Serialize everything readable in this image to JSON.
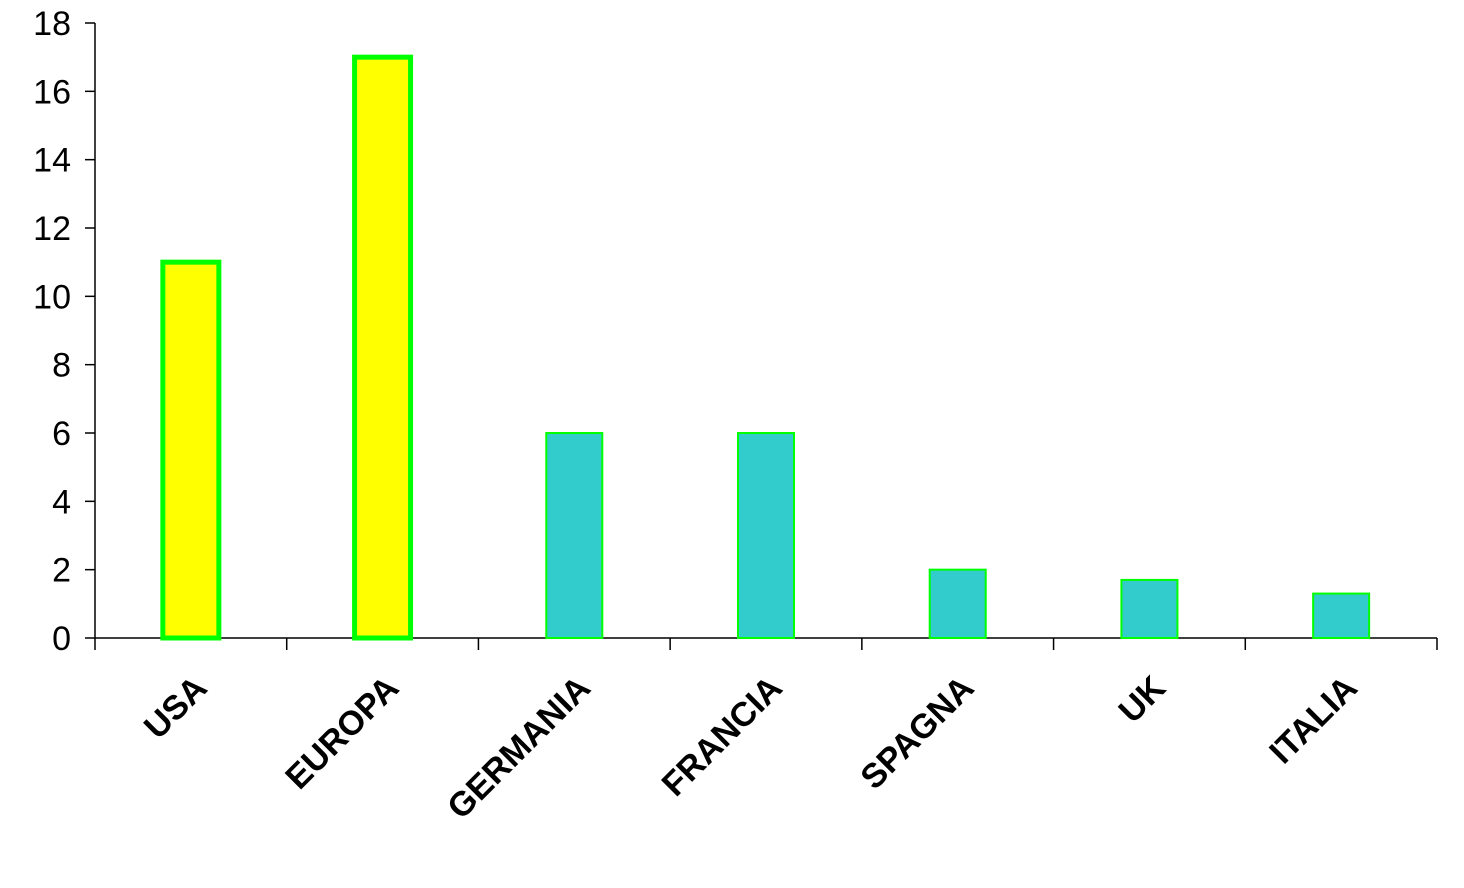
{
  "chart_data": {
    "type": "bar",
    "title": "",
    "xlabel": "",
    "ylabel": "",
    "categories": [
      "USA",
      "EUROPA",
      "GERMANIA",
      "FRANCIA",
      "SPAGNA",
      "UK",
      "ITALIA"
    ],
    "values": [
      11,
      17,
      6,
      6,
      2,
      1.7,
      1.3
    ],
    "ylim": [
      0,
      18
    ],
    "yticks": [
      0,
      2,
      4,
      6,
      8,
      10,
      12,
      14,
      16,
      18
    ],
    "grid": false,
    "legend": "none",
    "bar_styles": [
      {
        "fill": "#ffff00",
        "stroke": "#00ff00"
      },
      {
        "fill": "#ffff00",
        "stroke": "#00ff00"
      },
      {
        "fill": "#33cccc",
        "stroke": "#00ff00"
      },
      {
        "fill": "#33cccc",
        "stroke": "#00ff00"
      },
      {
        "fill": "#33cccc",
        "stroke": "#00ff00"
      },
      {
        "fill": "#33cccc",
        "stroke": "#00ff00"
      },
      {
        "fill": "#33cccc",
        "stroke": "#00ff00"
      }
    ]
  }
}
